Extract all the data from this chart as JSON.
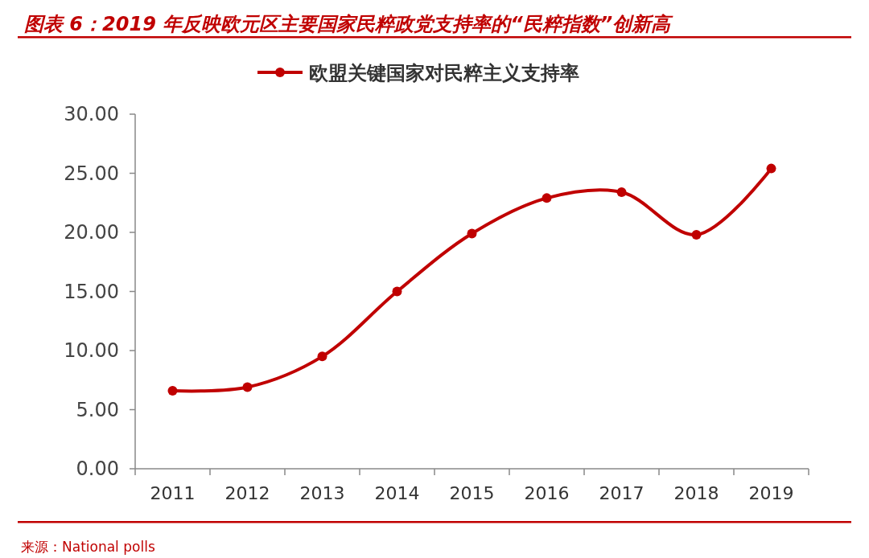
{
  "chart_data": {
    "type": "line",
    "title": "图表 6：2019 年反映欧元区主要国家民粹政党支持率的“民粹指数”创新高",
    "categories": [
      "2011",
      "2012",
      "2013",
      "2014",
      "2015",
      "2016",
      "2017",
      "2018",
      "2019"
    ],
    "series": [
      {
        "name": "欧盟关键国家对民粹主义支持率",
        "color": "#c00000",
        "values": [
          6.6,
          6.9,
          9.5,
          15.0,
          19.9,
          22.9,
          23.4,
          19.8,
          25.4
        ]
      }
    ],
    "ylim": [
      0,
      30
    ],
    "yticks": [
      {
        "value": 0,
        "label": "0.00"
      },
      {
        "value": 5,
        "label": "5.00"
      },
      {
        "value": 10,
        "label": "10.00"
      },
      {
        "value": 15,
        "label": "15.00"
      },
      {
        "value": 20,
        "label": "20.00"
      },
      {
        "value": 25,
        "label": "25.00"
      },
      {
        "value": 30,
        "label": "30.00"
      }
    ],
    "grid": false,
    "legend": "top",
    "marker": "circle",
    "line_style": "solid",
    "annotations": [
      "来源：National polls"
    ]
  }
}
